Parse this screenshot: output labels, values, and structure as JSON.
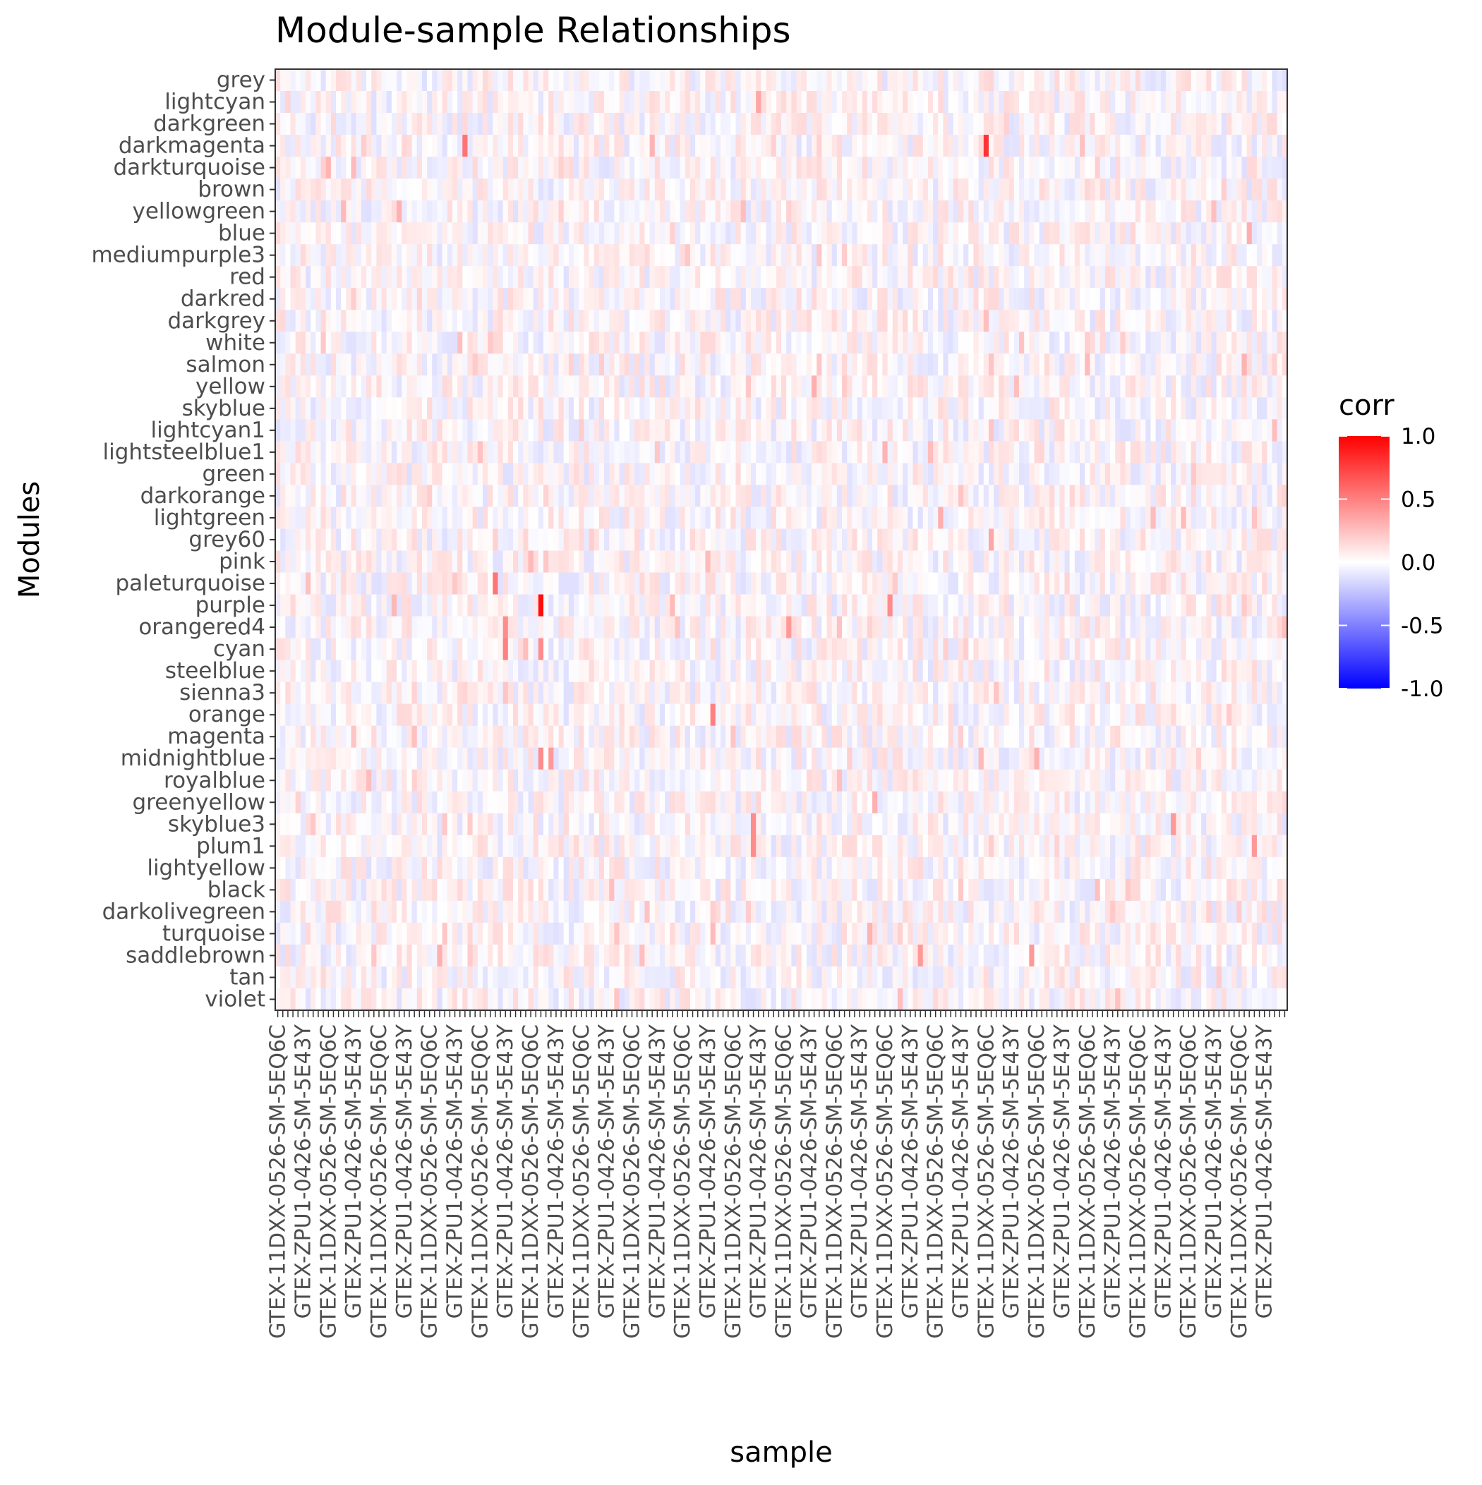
{
  "chart_data": {
    "type": "heatmap",
    "title": "Module-sample Relationships",
    "xlabel": "sample",
    "ylabel": "Modules",
    "modules": [
      "grey",
      "lightcyan",
      "darkgreen",
      "darkmagenta",
      "darkturquoise",
      "brown",
      "yellowgreen",
      "blue",
      "mediumpurple3",
      "red",
      "darkred",
      "darkgrey",
      "white",
      "salmon",
      "yellow",
      "skyblue",
      "lightcyan1",
      "lightsteelblue1",
      "green",
      "darkorange",
      "lightgreen",
      "grey60",
      "pink",
      "paleturquoise",
      "purple",
      "orangered4",
      "cyan",
      "steelblue",
      "sienna3",
      "orange",
      "magenta",
      "midnightblue",
      "royalblue",
      "greenyellow",
      "skyblue3",
      "plum1",
      "lightyellow",
      "black",
      "darkolivegreen",
      "turquoise",
      "saddlebrown",
      "tan",
      "violet"
    ],
    "sample_labels": [
      "GTEX-11DXX-0526-SM-5EQ6C",
      "GTEX-ZPU1-0426-SM-5E43Y"
    ],
    "n_samples": 200,
    "value_range": [
      -1.0,
      1.0
    ],
    "grid": false,
    "legend": {
      "title": "corr",
      "position": "right",
      "ticks": [
        "1.0",
        "0.5",
        "0.0",
        "-0.5",
        "-1.0"
      ],
      "colors": {
        "low": "#0000ff",
        "mid": "#ffffff",
        "high": "#ff0000"
      }
    },
    "highlights": [
      {
        "module": "darkmagenta",
        "sample_index": 140,
        "corr": 0.8
      },
      {
        "module": "darkmagenta",
        "sample_index": 37,
        "corr": 0.55
      },
      {
        "module": "purple",
        "sample_index": 52,
        "corr": 0.95
      },
      {
        "module": "purple",
        "sample_index": 121,
        "corr": 0.45
      },
      {
        "module": "paleturquoise",
        "sample_index": 43,
        "corr": 0.55
      },
      {
        "module": "cyan",
        "sample_index": 45,
        "corr": 0.5
      },
      {
        "module": "cyan",
        "sample_index": 52,
        "corr": 0.45
      },
      {
        "module": "orangered4",
        "sample_index": 45,
        "corr": 0.45
      },
      {
        "module": "orangered4",
        "sample_index": 101,
        "corr": 0.4
      },
      {
        "module": "orange",
        "sample_index": 86,
        "corr": 0.5
      },
      {
        "module": "midnightblue",
        "sample_index": 52,
        "corr": 0.45
      },
      {
        "module": "midnightblue",
        "sample_index": 54,
        "corr": 0.4
      },
      {
        "module": "skyblue3",
        "sample_index": 94,
        "corr": 0.45
      },
      {
        "module": "skyblue3",
        "sample_index": 177,
        "corr": 0.4
      },
      {
        "module": "plum1",
        "sample_index": 94,
        "corr": 0.45
      },
      {
        "module": "plum1",
        "sample_index": 193,
        "corr": 0.4
      },
      {
        "module": "saddlebrown",
        "sample_index": 127,
        "corr": 0.4
      },
      {
        "module": "saddlebrown",
        "sample_index": 149,
        "corr": 0.4
      },
      {
        "module": "lightsteelblue1",
        "sample_index": 120,
        "corr": 0.3
      },
      {
        "module": "grey60",
        "sample_index": 141,
        "corr": 0.35
      },
      {
        "module": "lightcyan",
        "sample_index": 95,
        "corr": 0.35
      }
    ]
  }
}
